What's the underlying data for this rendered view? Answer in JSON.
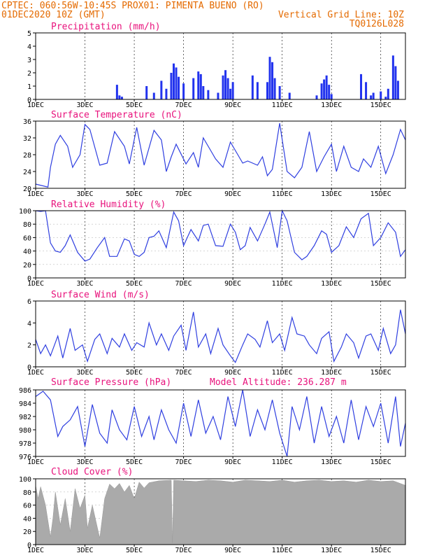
{
  "header": {
    "line1_left": "CPTEC:   060:56W-10:45S   PROX01: PIMENTA BUENO (RO)",
    "line2_left": "01DEC2020 10Z (GMT)",
    "line2_right": "Vertical Grid Line: 10Z",
    "line3_right": "TQ0126L028"
  },
  "colors": {
    "header": "#e46a00",
    "panel_title": "#e8127c",
    "series_line": "#2f3fe0",
    "precip_bar": "#2233ee",
    "cloud_fill": "#aaaaaa"
  },
  "x_ticks": [
    "1DEC",
    "3DEC",
    "5DEC",
    "7DEC",
    "9DEC",
    "11DEC",
    "13DEC",
    "15DEC"
  ],
  "x_range_days": [
    1,
    16
  ],
  "panels": [
    {
      "id": "precip",
      "title": "Precipitation (mm/h)",
      "extra": "",
      "yticks": [
        "0",
        "1",
        "2",
        "3",
        "4",
        "5"
      ]
    },
    {
      "id": "temp",
      "title": "Surface Temperature (nC)",
      "extra": "",
      "yticks": [
        "20",
        "24",
        "28",
        "32",
        "36"
      ]
    },
    {
      "id": "rh",
      "title": "Relative Humidity (%)",
      "extra": "",
      "yticks": [
        "0",
        "20",
        "40",
        "60",
        "80",
        "100"
      ]
    },
    {
      "id": "wind",
      "title": "Surface Wind (m/s)",
      "extra": "",
      "yticks": [
        "0",
        "2",
        "4",
        "6"
      ]
    },
    {
      "id": "press",
      "title": "Surface Pressure (hPa)",
      "extra": "Model Altitude: 236.287 m",
      "yticks": [
        "976",
        "978",
        "980",
        "982",
        "984",
        "986"
      ]
    },
    {
      "id": "cloud",
      "title": "Cloud Cover (%)",
      "extra": "",
      "yticks": [
        "0",
        "20",
        "40",
        "60",
        "80",
        "100"
      ]
    }
  ],
  "chart_data": [
    {
      "type": "bar",
      "title": "Precipitation (mm/h)",
      "xlabel": "",
      "ylabel": "",
      "ylim": [
        0,
        5
      ],
      "x_unit": "day of December 2020",
      "x": [
        4.3,
        4.4,
        4.5,
        5.5,
        5.8,
        6.1,
        6.3,
        6.5,
        6.6,
        6.7,
        6.8,
        7.0,
        7.4,
        7.6,
        7.7,
        7.8,
        8.0,
        8.4,
        8.6,
        8.7,
        8.8,
        8.9,
        9.0,
        9.8,
        10.0,
        10.4,
        10.5,
        10.6,
        10.7,
        10.9,
        11.3,
        12.4,
        12.6,
        12.7,
        12.8,
        12.9,
        13.0,
        14.2,
        14.4,
        14.6,
        14.7,
        15.0,
        15.2,
        15.3,
        15.5,
        15.6,
        15.7
      ],
      "values": [
        1.1,
        0.3,
        0.2,
        1.0,
        0.5,
        1.4,
        0.8,
        2.0,
        2.7,
        2.4,
        1.7,
        1.2,
        1.6,
        2.1,
        1.9,
        1.0,
        0.7,
        0.5,
        1.8,
        2.2,
        1.6,
        0.8,
        1.3,
        1.8,
        1.3,
        1.3,
        3.2,
        2.8,
        1.6,
        1.0,
        0.5,
        0.3,
        1.2,
        1.5,
        1.8,
        1.1,
        0.4,
        1.9,
        1.3,
        0.3,
        0.5,
        0.6,
        0.2,
        0.8,
        3.3,
        2.5,
        1.4
      ]
    },
    {
      "type": "line",
      "title": "Surface Temperature (nC)",
      "xlabel": "",
      "ylabel": "",
      "ylim": [
        20,
        36
      ],
      "x": [
        1.0,
        1.5,
        1.6,
        1.8,
        2.0,
        2.3,
        2.5,
        2.8,
        3.0,
        3.2,
        3.6,
        3.9,
        4.2,
        4.6,
        4.8,
        5.1,
        5.4,
        5.8,
        6.1,
        6.3,
        6.5,
        6.7,
        7.1,
        7.4,
        7.6,
        7.8,
        8.1,
        8.3,
        8.6,
        8.9,
        9.2,
        9.4,
        9.6,
        10.0,
        10.2,
        10.4,
        10.6,
        10.9,
        11.2,
        11.5,
        11.8,
        12.1,
        12.4,
        12.7,
        13.0,
        13.2,
        13.5,
        13.8,
        14.1,
        14.3,
        14.6,
        14.9,
        15.2,
        15.5,
        15.8,
        16.0
      ],
      "values": [
        21.0,
        20.3,
        25.0,
        30.5,
        32.6,
        30.0,
        25.0,
        28.0,
        35.2,
        34.0,
        25.5,
        26.0,
        33.5,
        30.0,
        25.8,
        34.5,
        25.5,
        33.8,
        31.5,
        24.0,
        27.5,
        30.5,
        25.8,
        28.5,
        25.0,
        32.0,
        29.0,
        27.0,
        25.0,
        31.0,
        28.0,
        26.0,
        26.5,
        25.5,
        27.5,
        23.0,
        24.5,
        35.5,
        24.0,
        22.5,
        25.0,
        33.5,
        24.0,
        27.5,
        30.5,
        24.0,
        30.0,
        25.0,
        24.0,
        27.0,
        25.0,
        30.0,
        23.5,
        28.0,
        34.0,
        31.5
      ]
    },
    {
      "type": "line",
      "title": "Relative Humidity (%)",
      "xlabel": "",
      "ylabel": "",
      "ylim": [
        0,
        100
      ],
      "x": [
        1.0,
        1.2,
        1.4,
        1.6,
        1.8,
        2.0,
        2.2,
        2.4,
        2.7,
        3.0,
        3.2,
        3.5,
        3.8,
        4.0,
        4.3,
        4.6,
        4.8,
        5.0,
        5.2,
        5.4,
        5.6,
        5.8,
        6.0,
        6.3,
        6.6,
        6.8,
        7.0,
        7.3,
        7.6,
        7.8,
        8.0,
        8.3,
        8.6,
        8.9,
        9.1,
        9.3,
        9.5,
        9.7,
        10.0,
        10.3,
        10.5,
        10.8,
        11.0,
        11.2,
        11.5,
        11.8,
        12.0,
        12.3,
        12.6,
        12.8,
        13.0,
        13.3,
        13.6,
        13.9,
        14.2,
        14.5,
        14.7,
        15.0,
        15.3,
        15.6,
        15.8,
        16.0
      ],
      "values": [
        100,
        99,
        100,
        52,
        40,
        38,
        48,
        64,
        38,
        25,
        28,
        45,
        60,
        32,
        32,
        58,
        55,
        35,
        32,
        38,
        60,
        62,
        70,
        45,
        98,
        85,
        48,
        72,
        55,
        78,
        80,
        48,
        47,
        80,
        68,
        42,
        48,
        75,
        55,
        80,
        98,
        45,
        100,
        85,
        38,
        27,
        32,
        48,
        70,
        65,
        38,
        48,
        76,
        60,
        88,
        96,
        48,
        60,
        82,
        68,
        32,
        42
      ]
    },
    {
      "type": "line",
      "title": "Surface Wind (m/s)",
      "xlabel": "",
      "ylabel": "",
      "ylim": [
        0,
        6
      ],
      "x": [
        1.0,
        1.2,
        1.4,
        1.6,
        1.9,
        2.1,
        2.4,
        2.6,
        2.9,
        3.1,
        3.4,
        3.6,
        3.9,
        4.1,
        4.4,
        4.6,
        4.9,
        5.1,
        5.4,
        5.6,
        5.9,
        6.1,
        6.4,
        6.6,
        6.9,
        7.1,
        7.4,
        7.6,
        7.9,
        8.1,
        8.4,
        8.6,
        8.9,
        9.1,
        9.4,
        9.6,
        9.9,
        10.1,
        10.4,
        10.6,
        10.9,
        11.1,
        11.4,
        11.6,
        11.9,
        12.1,
        12.4,
        12.6,
        12.9,
        13.1,
        13.4,
        13.6,
        13.9,
        14.1,
        14.4,
        14.6,
        14.9,
        15.1,
        15.4,
        15.6,
        15.8,
        16.0
      ],
      "values": [
        2.5,
        1.2,
        2.0,
        1.0,
        2.8,
        0.8,
        3.5,
        1.5,
        2.0,
        0.5,
        2.5,
        3.0,
        1.2,
        2.6,
        1.8,
        3.0,
        1.5,
        2.2,
        1.8,
        4.0,
        2.0,
        3.0,
        1.5,
        2.8,
        3.8,
        1.5,
        5.0,
        1.8,
        3.0,
        1.2,
        3.5,
        2.0,
        1.0,
        0.4,
        2.0,
        3.0,
        2.5,
        1.8,
        4.2,
        2.2,
        3.0,
        1.5,
        4.5,
        3.0,
        2.8,
        2.0,
        1.2,
        2.6,
        3.2,
        0.5,
        1.8,
        3.0,
        2.2,
        0.8,
        2.8,
        3.0,
        1.5,
        3.5,
        1.2,
        2.0,
        5.2,
        3.0
      ]
    },
    {
      "type": "line",
      "title": "Surface Pressure (hPa)",
      "xlabel": "",
      "ylabel": "",
      "ylim": [
        976,
        986
      ],
      "annotation": "Model Altitude: 236.287 m",
      "x": [
        1.0,
        1.3,
        1.6,
        1.9,
        2.1,
        2.4,
        2.7,
        3.0,
        3.3,
        3.6,
        3.9,
        4.1,
        4.4,
        4.7,
        5.0,
        5.3,
        5.6,
        5.8,
        6.1,
        6.4,
        6.7,
        7.0,
        7.3,
        7.6,
        7.9,
        8.2,
        8.5,
        8.8,
        9.1,
        9.4,
        9.7,
        10.0,
        10.3,
        10.6,
        10.9,
        11.2,
        11.4,
        11.7,
        12.0,
        12.3,
        12.6,
        12.9,
        13.2,
        13.5,
        13.8,
        14.1,
        14.4,
        14.7,
        15.0,
        15.3,
        15.6,
        15.8,
        16.0
      ],
      "values": [
        985.0,
        985.8,
        984.5,
        979.0,
        980.5,
        981.5,
        983.5,
        977.5,
        983.8,
        979.5,
        978.0,
        983.0,
        980.0,
        978.5,
        983.5,
        979.0,
        982.0,
        978.5,
        983.0,
        980.0,
        978.0,
        984.0,
        979.0,
        984.5,
        979.5,
        982.0,
        978.5,
        985.0,
        980.5,
        986.0,
        979.0,
        983.0,
        980.0,
        984.5,
        979.5,
        976.0,
        983.5,
        980.0,
        985.0,
        978.0,
        983.5,
        979.0,
        982.0,
        978.0,
        984.5,
        978.5,
        983.5,
        980.5,
        984.0,
        978.0,
        985.0,
        977.5,
        981.0
      ]
    },
    {
      "type": "area",
      "title": "Cloud Cover (%)",
      "xlabel": "",
      "ylabel": "",
      "ylim": [
        0,
        100
      ],
      "x": [
        1.0,
        1.1,
        1.2,
        1.4,
        1.6,
        1.7,
        1.8,
        2.0,
        2.2,
        2.4,
        2.6,
        2.8,
        3.0,
        3.1,
        3.3,
        3.6,
        3.8,
        4.0,
        4.2,
        4.4,
        4.6,
        4.8,
        5.0,
        5.2,
        5.4,
        5.6,
        6.0,
        6.5,
        6.55,
        6.6,
        7.0,
        7.5,
        8.0,
        8.5,
        9.0,
        9.5,
        10.0,
        10.5,
        11.0,
        11.5,
        12.0,
        12.5,
        13.0,
        13.5,
        14.0,
        14.5,
        15.0,
        15.5,
        16.0
      ],
      "values": [
        90,
        70,
        88,
        60,
        12,
        40,
        80,
        30,
        70,
        20,
        85,
        55,
        75,
        25,
        60,
        10,
        70,
        92,
        85,
        93,
        80,
        90,
        70,
        95,
        86,
        94,
        97,
        98,
        3,
        98,
        97,
        96,
        98,
        97,
        95,
        98,
        97,
        96,
        98,
        95,
        97,
        98,
        96,
        97,
        95,
        98,
        96,
        97,
        90
      ]
    }
  ]
}
